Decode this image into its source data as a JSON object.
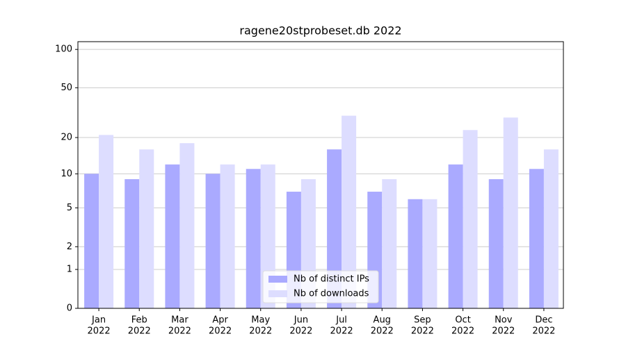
{
  "chart_data": {
    "type": "bar",
    "title": "ragene20stprobeset.db 2022",
    "categories": [
      [
        "Jan",
        "2022"
      ],
      [
        "Feb",
        "2022"
      ],
      [
        "Mar",
        "2022"
      ],
      [
        "Apr",
        "2022"
      ],
      [
        "May",
        "2022"
      ],
      [
        "Jun",
        "2022"
      ],
      [
        "Jul",
        "2022"
      ],
      [
        "Aug",
        "2022"
      ],
      [
        "Sep",
        "2022"
      ],
      [
        "Oct",
        "2022"
      ],
      [
        "Nov",
        "2022"
      ],
      [
        "Dec",
        "2022"
      ]
    ],
    "series": [
      {
        "name": "Nb of distinct IPs",
        "color": "#aaaaff",
        "values": [
          10,
          9,
          12,
          10,
          11,
          7,
          16,
          7,
          6,
          12,
          9,
          11
        ]
      },
      {
        "name": "Nb of downloads",
        "color": "#ddddff",
        "values": [
          21,
          16,
          18,
          12,
          12,
          9,
          30,
          9,
          6,
          23,
          29,
          16
        ]
      }
    ],
    "yscale": "log1p",
    "ylim": [
      0,
      115
    ],
    "yticks": [
      0,
      1,
      2,
      5,
      10,
      20,
      50,
      100
    ],
    "grid": true,
    "legend": "lower center"
  }
}
